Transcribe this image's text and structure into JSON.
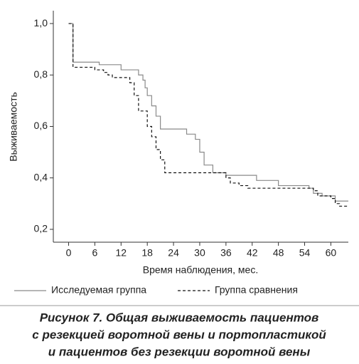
{
  "chart_data": {
    "type": "line",
    "step": "post",
    "ylabel": "Выживаемость",
    "xlabel": "Время наблюдения, мес.",
    "xlim": [
      -3.5,
      64
    ],
    "ylim": [
      0.15,
      1.05
    ],
    "xticks": [
      0,
      6,
      12,
      18,
      24,
      30,
      36,
      42,
      48,
      54,
      60
    ],
    "yticks": [
      {
        "value": 0.2,
        "label": "0,2"
      },
      {
        "value": 0.4,
        "label": "0,4"
      },
      {
        "value": 0.6,
        "label": "0,6"
      },
      {
        "value": 0.8,
        "label": "0,8"
      },
      {
        "value": 1.0,
        "label": "1,0"
      }
    ],
    "series": [
      {
        "name": "Исследуемая группа",
        "color": "#8a8a8a",
        "dash": "none",
        "x": [
          0,
          1,
          7,
          12,
          16,
          17,
          17.5,
          18,
          19,
          20,
          21,
          22,
          27,
          29,
          30,
          31,
          33,
          36,
          41,
          43,
          48,
          55,
          56,
          58,
          61,
          64
        ],
        "values": [
          1.0,
          0.85,
          0.84,
          0.82,
          0.8,
          0.78,
          0.75,
          0.72,
          0.68,
          0.64,
          0.59,
          0.59,
          0.57,
          0.55,
          0.5,
          0.45,
          0.42,
          0.41,
          0.41,
          0.39,
          0.37,
          0.36,
          0.34,
          0.33,
          0.31,
          0.31
        ]
      },
      {
        "name": "Группа сравнения",
        "color": "#111111",
        "dash": "4,3",
        "x": [
          0,
          1,
          6,
          8,
          9,
          10,
          14,
          15,
          16,
          18,
          19,
          20,
          21,
          22,
          35,
          36,
          37,
          39,
          41,
          56,
          57,
          60,
          61,
          62,
          64
        ],
        "values": [
          1.0,
          0.83,
          0.82,
          0.81,
          0.8,
          0.79,
          0.77,
          0.72,
          0.66,
          0.6,
          0.56,
          0.51,
          0.47,
          0.42,
          0.42,
          0.4,
          0.38,
          0.37,
          0.36,
          0.35,
          0.33,
          0.32,
          0.3,
          0.29,
          0.29
        ]
      }
    ],
    "caption": [
      "Рисунок 7. Общая выживаемость пациентов",
      "с резекцией воротной вены и портопластикой",
      "и пациентов без резекции воротной вены"
    ]
  }
}
